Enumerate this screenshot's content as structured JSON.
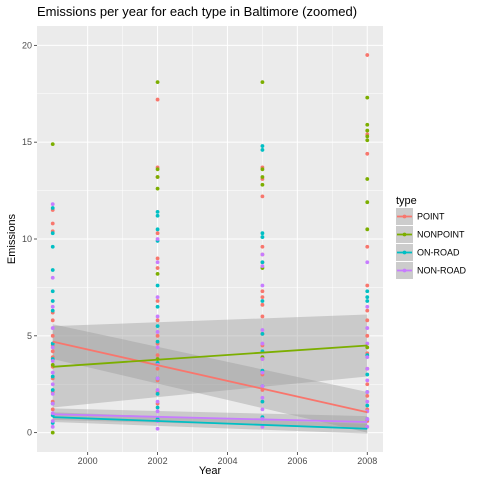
{
  "chart_data": {
    "type": "scatter",
    "title": "Emissions per year for each type in Baltimore (zoomed)",
    "xlabel": "Year",
    "ylabel": "Emissions",
    "xlim": [
      1998.55,
      2008.45
    ],
    "ylim": [
      -1.0,
      21.0
    ],
    "x_ticks": [
      2000,
      2002,
      2004,
      2006,
      2008
    ],
    "y_ticks": [
      0,
      5,
      10,
      15,
      20
    ],
    "grid": true,
    "legend_title": "type",
    "legend_position": "right",
    "series": [
      {
        "name": "POINT",
        "color": "#F8766D",
        "points": [
          [
            1999,
            11.5
          ],
          [
            1999,
            10.8
          ],
          [
            1999,
            10.4
          ],
          [
            1999,
            6.2
          ],
          [
            1999,
            5.8
          ],
          [
            1999,
            5.0
          ],
          [
            1999,
            4.5
          ],
          [
            1999,
            4.2
          ],
          [
            1999,
            3.9
          ],
          [
            1999,
            3.4
          ],
          [
            1999,
            2.8
          ],
          [
            1999,
            2.1
          ],
          [
            1999,
            1.6
          ],
          [
            1999,
            1.2
          ],
          [
            2002,
            17.2
          ],
          [
            2002,
            13.7
          ],
          [
            2002,
            13.2
          ],
          [
            2002,
            10.3
          ],
          [
            2002,
            9.0
          ],
          [
            2002,
            8.5
          ],
          [
            2002,
            6.8
          ],
          [
            2002,
            5.8
          ],
          [
            2002,
            5.0
          ],
          [
            2002,
            4.6
          ],
          [
            2002,
            4.0
          ],
          [
            2002,
            3.3
          ],
          [
            2002,
            2.7
          ],
          [
            2002,
            2.1
          ],
          [
            2002,
            1.5
          ],
          [
            2005,
            13.7
          ],
          [
            2005,
            13.1
          ],
          [
            2005,
            12.2
          ],
          [
            2005,
            9.6
          ],
          [
            2005,
            9.2
          ],
          [
            2005,
            8.8
          ],
          [
            2005,
            7.3
          ],
          [
            2005,
            7.0
          ],
          [
            2005,
            6.6
          ],
          [
            2005,
            6.0
          ],
          [
            2005,
            5.1
          ],
          [
            2005,
            4.5
          ],
          [
            2005,
            3.8
          ],
          [
            2005,
            3.0
          ],
          [
            2005,
            2.2
          ],
          [
            2008,
            19.5
          ],
          [
            2008,
            15.4
          ],
          [
            2008,
            14.4
          ],
          [
            2008,
            9.6
          ],
          [
            2008,
            7.6
          ],
          [
            2008,
            6.3
          ],
          [
            2008,
            5.8
          ],
          [
            2008,
            5.0
          ],
          [
            2008,
            4.1
          ],
          [
            2008,
            3.3
          ],
          [
            2008,
            2.5
          ],
          [
            2008,
            1.9
          ],
          [
            2008,
            1.2
          ],
          [
            2008,
            0.6
          ]
        ],
        "fit": {
          "y_start": 4.7,
          "y_end": 1.05,
          "ci_start": [
            3.8,
            5.6
          ],
          "ci_end": [
            0.0,
            2.1
          ]
        }
      },
      {
        "name": "NONPOINT",
        "color": "#7CAE00",
        "points": [
          [
            1999,
            14.9
          ],
          [
            1999,
            3.5
          ],
          [
            1999,
            0.0
          ],
          [
            2002,
            18.1
          ],
          [
            2002,
            13.6
          ],
          [
            2002,
            13.2
          ],
          [
            2002,
            12.6
          ],
          [
            2002,
            8.2
          ],
          [
            2002,
            3.8
          ],
          [
            2005,
            18.1
          ],
          [
            2005,
            13.6
          ],
          [
            2005,
            13.2
          ],
          [
            2005,
            12.8
          ],
          [
            2005,
            8.5
          ],
          [
            2005,
            3.9
          ],
          [
            2008,
            17.3
          ],
          [
            2008,
            15.9
          ],
          [
            2008,
            15.6
          ],
          [
            2008,
            15.3
          ],
          [
            2008,
            15.1
          ],
          [
            2008,
            13.1
          ],
          [
            2008,
            11.9
          ],
          [
            2008,
            10.5
          ],
          [
            2008,
            4.4
          ]
        ],
        "fit": {
          "y_start": 3.4,
          "y_end": 4.5,
          "ci_start": [
            1.3,
            5.5
          ],
          "ci_end": [
            2.9,
            6.1
          ]
        }
      },
      {
        "name": "ON-ROAD",
        "color": "#00BFC4",
        "points": [
          [
            1999,
            11.6
          ],
          [
            1999,
            10.3
          ],
          [
            1999,
            9.6
          ],
          [
            1999,
            8.4
          ],
          [
            1999,
            7.3
          ],
          [
            1999,
            6.8
          ],
          [
            1999,
            6.3
          ],
          [
            1999,
            4.6
          ],
          [
            1999,
            3.8
          ],
          [
            1999,
            2.9
          ],
          [
            1999,
            2.2
          ],
          [
            1999,
            1.5
          ],
          [
            1999,
            0.9
          ],
          [
            1999,
            0.5
          ],
          [
            2002,
            11.4
          ],
          [
            2002,
            11.2
          ],
          [
            2002,
            10.5
          ],
          [
            2002,
            9.9
          ],
          [
            2002,
            7.6
          ],
          [
            2002,
            6.5
          ],
          [
            2002,
            5.5
          ],
          [
            2002,
            4.7
          ],
          [
            2002,
            3.6
          ],
          [
            2002,
            2.8
          ],
          [
            2002,
            2.0
          ],
          [
            2002,
            1.3
          ],
          [
            2002,
            0.7
          ],
          [
            2005,
            14.8
          ],
          [
            2005,
            14.6
          ],
          [
            2005,
            10.3
          ],
          [
            2005,
            10.1
          ],
          [
            2005,
            8.8
          ],
          [
            2005,
            6.8
          ],
          [
            2005,
            5.1
          ],
          [
            2005,
            4.2
          ],
          [
            2005,
            3.2
          ],
          [
            2005,
            2.4
          ],
          [
            2005,
            1.6
          ],
          [
            2005,
            0.8
          ],
          [
            2008,
            7.3
          ],
          [
            2008,
            7.0
          ],
          [
            2008,
            6.8
          ],
          [
            2008,
            4.0
          ],
          [
            2008,
            3.0
          ],
          [
            2008,
            2.1
          ],
          [
            2008,
            1.4
          ],
          [
            2008,
            0.7
          ]
        ],
        "fit": {
          "y_start": 0.8,
          "y_end": 0.2,
          "ci_start": [
            0.55,
            1.05
          ],
          "ci_end": [
            -0.05,
            0.45
          ]
        }
      },
      {
        "name": "NON-ROAD",
        "color": "#C77CFF",
        "points": [
          [
            1999,
            11.8
          ],
          [
            1999,
            8.0
          ],
          [
            1999,
            6.5
          ],
          [
            1999,
            5.4
          ],
          [
            1999,
            4.4
          ],
          [
            1999,
            3.7
          ],
          [
            1999,
            3.1
          ],
          [
            1999,
            2.5
          ],
          [
            1999,
            2.0
          ],
          [
            1999,
            1.5
          ],
          [
            1999,
            1.0
          ],
          [
            1999,
            0.6
          ],
          [
            1999,
            0.3
          ],
          [
            2002,
            10.0
          ],
          [
            2002,
            8.8
          ],
          [
            2002,
            7.0
          ],
          [
            2002,
            6.0
          ],
          [
            2002,
            5.2
          ],
          [
            2002,
            4.4
          ],
          [
            2002,
            3.5
          ],
          [
            2002,
            2.8
          ],
          [
            2002,
            2.2
          ],
          [
            2002,
            1.6
          ],
          [
            2002,
            1.1
          ],
          [
            2002,
            0.6
          ],
          [
            2002,
            0.2
          ],
          [
            2005,
            9.2
          ],
          [
            2005,
            8.6
          ],
          [
            2005,
            7.6
          ],
          [
            2005,
            5.3
          ],
          [
            2005,
            4.6
          ],
          [
            2005,
            3.8
          ],
          [
            2005,
            3.1
          ],
          [
            2005,
            2.4
          ],
          [
            2005,
            1.8
          ],
          [
            2005,
            1.2
          ],
          [
            2005,
            0.7
          ],
          [
            2005,
            0.3
          ],
          [
            2008,
            8.8
          ],
          [
            2008,
            6.5
          ],
          [
            2008,
            5.4
          ],
          [
            2008,
            4.6
          ],
          [
            2008,
            3.9
          ],
          [
            2008,
            3.3
          ],
          [
            2008,
            2.7
          ],
          [
            2008,
            2.1
          ],
          [
            2008,
            1.6
          ],
          [
            2008,
            1.1
          ],
          [
            2008,
            0.7
          ],
          [
            2008,
            0.3
          ]
        ],
        "fit": {
          "y_start": 0.95,
          "y_end": 0.55,
          "ci_start": [
            0.65,
            1.25
          ],
          "ci_end": [
            0.25,
            0.85
          ]
        }
      }
    ]
  }
}
